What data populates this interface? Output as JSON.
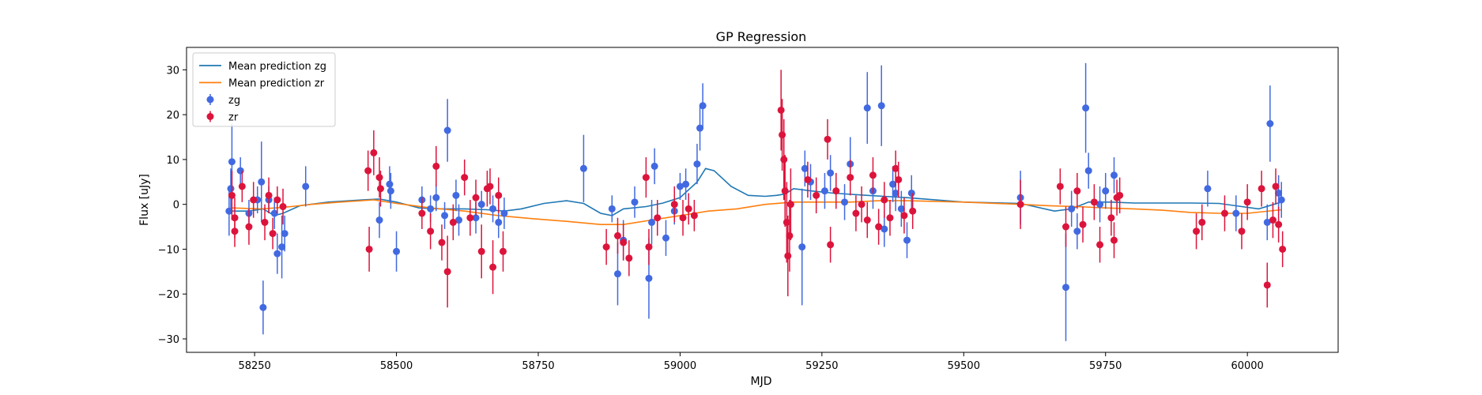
{
  "chart_data": {
    "type": "scatter",
    "title": "GP Regression",
    "xlabel": "MJD",
    "ylabel": "Flux [uJy]",
    "xlim": [
      58130,
      60160
    ],
    "ylim": [
      -33,
      35
    ],
    "xticks": [
      58250,
      58500,
      58750,
      59000,
      59250,
      59500,
      59750,
      60000
    ],
    "yticks": [
      -30,
      -20,
      -10,
      0,
      10,
      20,
      30
    ],
    "grid": false,
    "legend_position": "top-left",
    "colors": {
      "zg_line": "#1f77b4",
      "zr_line": "#ff7f0e",
      "zg_points": "#4169e1",
      "zr_points": "#dc143c"
    },
    "legend": [
      {
        "label": "Mean prediction zg",
        "kind": "line",
        "color": "#1f77b4"
      },
      {
        "label": "Mean prediction zr",
        "kind": "line",
        "color": "#ff7f0e"
      },
      {
        "label": "zg",
        "kind": "errorbar",
        "color": "#4169e1"
      },
      {
        "label": "zr",
        "kind": "errorbar",
        "color": "#dc143c"
      }
    ],
    "lines": [
      {
        "name": "Mean prediction zg",
        "color": "#1f77b4",
        "x": [
          58210,
          58240,
          58265,
          58285,
          58300,
          58330,
          58380,
          58440,
          58470,
          58500,
          58540,
          58580,
          58620,
          58660,
          58690,
          58720,
          58760,
          58800,
          58830,
          58860,
          58880,
          58900,
          58940,
          58970,
          59000,
          59030,
          59045,
          59060,
          59090,
          59120,
          59150,
          59170,
          59185,
          59200,
          59230,
          59270,
          59330,
          59400,
          59500,
          59600,
          59660,
          59690,
          59720,
          59760,
          59800,
          59900,
          59950,
          59990,
          60020,
          60060
        ],
        "y": [
          -1.5,
          -1.5,
          -1.0,
          -2.5,
          -2.0,
          -0.3,
          0.5,
          1.0,
          1.2,
          0.5,
          -0.8,
          -1.0,
          -1.0,
          -1.2,
          -1.5,
          -1.0,
          0.2,
          0.8,
          0.2,
          -2.0,
          -2.5,
          -1.0,
          -0.5,
          0.3,
          1.5,
          5.0,
          8.0,
          7.5,
          4.0,
          2.0,
          1.8,
          2.0,
          2.3,
          3.5,
          3.0,
          2.5,
          2.0,
          1.5,
          0.5,
          0.2,
          -1.5,
          -1.0,
          0.5,
          0.5,
          0.3,
          0.3,
          0.2,
          -0.5,
          -1.0,
          0.5
        ]
      },
      {
        "name": "Mean prediction zr",
        "color": "#ff7f0e",
        "x": [
          58210,
          58260,
          58300,
          58350,
          58400,
          58460,
          58500,
          58560,
          58620,
          58680,
          58740,
          58800,
          58860,
          58900,
          58950,
          59000,
          59050,
          59100,
          59150,
          59200,
          59250,
          59300,
          59350,
          59400,
          59500,
          59600,
          59650,
          59700,
          59750,
          59800,
          59850,
          59900,
          59950,
          60000,
          60060
        ],
        "y": [
          -0.8,
          -1.0,
          -0.7,
          0.0,
          0.5,
          1.0,
          0.2,
          -0.8,
          -1.5,
          -2.5,
          -3.2,
          -3.8,
          -4.5,
          -4.5,
          -3.5,
          -2.5,
          -1.5,
          -1.0,
          0.0,
          0.5,
          0.5,
          0.5,
          0.8,
          0.8,
          0.5,
          0.0,
          -0.3,
          -0.5,
          -0.8,
          -1.0,
          -1.3,
          -1.8,
          -2.0,
          -2.0,
          -1.2
        ]
      }
    ],
    "series": [
      {
        "name": "zg",
        "color": "#4169e1",
        "points": [
          [
            58205,
            -1.5,
            5.5
          ],
          [
            58208,
            3.5,
            4.5
          ],
          [
            58210,
            9.5,
            8.5
          ],
          [
            58225,
            7.5,
            3.0
          ],
          [
            58240,
            -2.0,
            3.0
          ],
          [
            58255,
            1.0,
            3.0
          ],
          [
            58262,
            5.0,
            9.0
          ],
          [
            58265,
            -23.0,
            6.0
          ],
          [
            58275,
            1.0,
            3.0
          ],
          [
            58285,
            -2.0,
            3.5
          ],
          [
            58290,
            -11.0,
            4.5
          ],
          [
            58298,
            -9.5,
            7.0
          ],
          [
            58303,
            -6.5,
            4.0
          ],
          [
            58340,
            4.0,
            4.5
          ],
          [
            58470,
            -3.5,
            4.0
          ],
          [
            58488,
            4.5,
            4.0
          ],
          [
            58490,
            3.0,
            4.0
          ],
          [
            58500,
            -10.5,
            4.5
          ],
          [
            58545,
            1.0,
            3.0
          ],
          [
            58560,
            -1.0,
            3.0
          ],
          [
            58570,
            1.5,
            3.0
          ],
          [
            58585,
            -2.5,
            3.0
          ],
          [
            58590,
            16.5,
            7.0
          ],
          [
            58605,
            2.0,
            3.5
          ],
          [
            58610,
            -3.5,
            3.5
          ],
          [
            58640,
            -3.0,
            3.5
          ],
          [
            58650,
            0.0,
            3.0
          ],
          [
            58670,
            -1.0,
            3.0
          ],
          [
            58680,
            -4.0,
            3.5
          ],
          [
            58690,
            -2.0,
            3.5
          ],
          [
            58830,
            8.0,
            7.5
          ],
          [
            58880,
            -1.0,
            3.0
          ],
          [
            58890,
            -15.5,
            7.0
          ],
          [
            58900,
            -8.0,
            4.5
          ],
          [
            58920,
            0.5,
            3.5
          ],
          [
            58945,
            -16.5,
            9.0
          ],
          [
            58950,
            -4.0,
            5.0
          ],
          [
            58955,
            8.5,
            4.0
          ],
          [
            58975,
            -7.5,
            4.0
          ],
          [
            58990,
            -1.5,
            3.0
          ],
          [
            59000,
            4.0,
            3.0
          ],
          [
            59010,
            4.5,
            3.5
          ],
          [
            59030,
            9.0,
            4.5
          ],
          [
            59035,
            17.0,
            5.0
          ],
          [
            59040,
            22.0,
            5.0
          ],
          [
            59215,
            -9.5,
            13.0
          ],
          [
            59220,
            8.0,
            4.0
          ],
          [
            59230,
            5.0,
            4.0
          ],
          [
            59255,
            3.0,
            4.0
          ],
          [
            59265,
            7.0,
            4.0
          ],
          [
            59290,
            0.5,
            4.0
          ],
          [
            59300,
            9.0,
            6.0
          ],
          [
            59330,
            21.5,
            8.0
          ],
          [
            59340,
            3.0,
            4.0
          ],
          [
            59355,
            22.0,
            9.0
          ],
          [
            59360,
            -5.5,
            4.0
          ],
          [
            59375,
            4.5,
            4.0
          ],
          [
            59380,
            2.5,
            4.0
          ],
          [
            59390,
            -1.0,
            4.0
          ],
          [
            59400,
            -8.0,
            4.0
          ],
          [
            59408,
            2.5,
            4.0
          ],
          [
            59600,
            1.5,
            6.0
          ],
          [
            59680,
            -18.5,
            12.0
          ],
          [
            59690,
            -1.0,
            4.0
          ],
          [
            59700,
            -6.0,
            4.0
          ],
          [
            59715,
            21.5,
            10.0
          ],
          [
            59720,
            7.5,
            4.0
          ],
          [
            59740,
            0.0,
            4.0
          ],
          [
            59750,
            3.0,
            4.0
          ],
          [
            59765,
            6.5,
            4.0
          ],
          [
            59930,
            3.5,
            4.0
          ],
          [
            59980,
            -2.0,
            4.0
          ],
          [
            60035,
            -4.0,
            4.0
          ],
          [
            60040,
            18.0,
            8.5
          ],
          [
            60055,
            2.5,
            4.0
          ],
          [
            60060,
            1.0,
            4.0
          ]
        ]
      },
      {
        "name": "zr",
        "color": "#dc143c",
        "points": [
          [
            58210,
            2.0,
            5.5
          ],
          [
            58215,
            -3.0,
            4.5
          ],
          [
            58215,
            -6.0,
            3.5
          ],
          [
            58228,
            4.0,
            3.5
          ],
          [
            58240,
            -5.0,
            4.0
          ],
          [
            58248,
            1.0,
            4.0
          ],
          [
            58268,
            -4.0,
            4.0
          ],
          [
            58275,
            2.0,
            4.0
          ],
          [
            58282,
            -6.5,
            3.5
          ],
          [
            58290,
            1.0,
            3.0
          ],
          [
            58300,
            -0.5,
            4.0
          ],
          [
            58450,
            7.5,
            4.5
          ],
          [
            58452,
            -10.0,
            5.0
          ],
          [
            58460,
            11.5,
            5.0
          ],
          [
            58470,
            6.0,
            4.5
          ],
          [
            58472,
            3.5,
            4.0
          ],
          [
            58545,
            -2.0,
            3.5
          ],
          [
            58560,
            -6.0,
            4.0
          ],
          [
            58570,
            8.5,
            4.5
          ],
          [
            58580,
            -8.5,
            4.0
          ],
          [
            58590,
            -15.0,
            8.0
          ],
          [
            58600,
            -4.0,
            4.0
          ],
          [
            58620,
            6.0,
            4.0
          ],
          [
            58630,
            -3.0,
            4.0
          ],
          [
            58640,
            1.5,
            4.0
          ],
          [
            58650,
            -10.5,
            6.0
          ],
          [
            58660,
            3.5,
            4.0
          ],
          [
            58665,
            4.0,
            4.0
          ],
          [
            58670,
            -14.0,
            6.0
          ],
          [
            58680,
            2.0,
            4.0
          ],
          [
            58688,
            -10.5,
            4.5
          ],
          [
            58870,
            -9.5,
            4.0
          ],
          [
            58890,
            -7.0,
            4.0
          ],
          [
            58900,
            -8.5,
            4.0
          ],
          [
            58910,
            -12.0,
            4.0
          ],
          [
            58940,
            6.0,
            4.5
          ],
          [
            58945,
            -9.5,
            4.0
          ],
          [
            58960,
            -3.0,
            4.0
          ],
          [
            58990,
            0.0,
            4.0
          ],
          [
            59005,
            -3.0,
            4.0
          ],
          [
            59015,
            -1.0,
            3.5
          ],
          [
            59025,
            -2.5,
            3.5
          ],
          [
            59178,
            21.0,
            9.0
          ],
          [
            59180,
            15.5,
            8.0
          ],
          [
            59183,
            10.0,
            9.0
          ],
          [
            59185,
            3.0,
            8.0
          ],
          [
            59188,
            -4.0,
            9.0
          ],
          [
            59190,
            -11.5,
            9.0
          ],
          [
            59193,
            -7.0,
            8.0
          ],
          [
            59195,
            0.0,
            8.0
          ],
          [
            59225,
            5.5,
            4.0
          ],
          [
            59240,
            2.0,
            4.0
          ],
          [
            59260,
            14.5,
            4.5
          ],
          [
            59265,
            -9.0,
            4.0
          ],
          [
            59275,
            3.0,
            4.0
          ],
          [
            59300,
            6.0,
            4.0
          ],
          [
            59310,
            -2.0,
            4.0
          ],
          [
            59320,
            0.0,
            4.0
          ],
          [
            59330,
            -3.5,
            4.0
          ],
          [
            59340,
            6.5,
            4.0
          ],
          [
            59350,
            -5.0,
            4.0
          ],
          [
            59360,
            1.0,
            4.0
          ],
          [
            59370,
            -3.0,
            4.0
          ],
          [
            59380,
            8.0,
            4.0
          ],
          [
            59385,
            5.5,
            4.0
          ],
          [
            59395,
            -2.5,
            4.0
          ],
          [
            59410,
            -1.5,
            4.0
          ],
          [
            59600,
            0.0,
            5.5
          ],
          [
            59670,
            4.0,
            4.0
          ],
          [
            59680,
            -5.0,
            4.5
          ],
          [
            59700,
            3.0,
            4.0
          ],
          [
            59710,
            -4.5,
            4.0
          ],
          [
            59730,
            0.5,
            4.0
          ],
          [
            59740,
            -9.0,
            4.0
          ],
          [
            59760,
            -3.0,
            4.0
          ],
          [
            59765,
            -8.0,
            4.0
          ],
          [
            59770,
            1.5,
            4.0
          ],
          [
            59775,
            2.0,
            4.0
          ],
          [
            59910,
            -6.0,
            4.0
          ],
          [
            59920,
            -4.0,
            4.0
          ],
          [
            59960,
            -2.0,
            4.0
          ],
          [
            59990,
            -6.0,
            4.0
          ],
          [
            60000,
            0.5,
            4.0
          ],
          [
            60025,
            3.5,
            4.0
          ],
          [
            60035,
            -18.0,
            5.0
          ],
          [
            60045,
            -3.5,
            4.0
          ],
          [
            60050,
            4.0,
            4.0
          ],
          [
            60055,
            -4.5,
            4.0
          ],
          [
            60062,
            -10.0,
            4.0
          ]
        ]
      }
    ]
  }
}
